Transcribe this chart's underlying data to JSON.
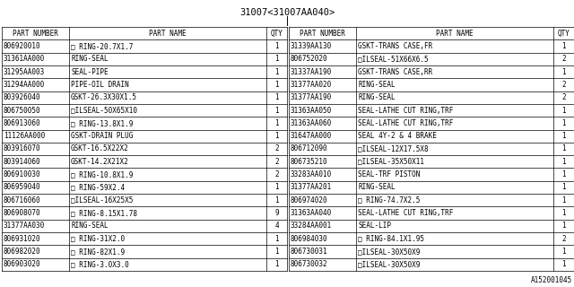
{
  "title": "31007<31007AA040>",
  "watermark": "A152001045",
  "left_rows": [
    [
      "806920010",
      "□ RING-20.7X1.7",
      "1"
    ],
    [
      "31361AA000",
      "RING-SEAL",
      "1"
    ],
    [
      "31295AA003",
      "SEAL-PIPE",
      "1"
    ],
    [
      "31294AA000",
      "PIPE-OIL DRAIN",
      "1"
    ],
    [
      "803926040",
      "GSKT-26.3X30X1.5",
      "1"
    ],
    [
      "806750050",
      "□ILSEAL-50X65X10",
      "1"
    ],
    [
      "806913060",
      "□ RING-13.8X1.9",
      "1"
    ],
    [
      "11126AA000",
      "GSKT-DRAIN PLUG",
      "1"
    ],
    [
      "803916070",
      "GSKT-16.5X22X2",
      "2"
    ],
    [
      "803914060",
      "GSKT-14.2X21X2",
      "2"
    ],
    [
      "806910030",
      "□ RING-10.8X1.9",
      "2"
    ],
    [
      "806959040",
      "□ RING-59X2.4",
      "1"
    ],
    [
      "806716060",
      "□ILSEAL-16X25X5",
      "1"
    ],
    [
      "806908070",
      "□ RING-8.15X1.78",
      "9"
    ],
    [
      "31377AA030",
      "RING-SEAL",
      "4"
    ],
    [
      "806931020",
      "□ RING-31X2.0",
      "1"
    ],
    [
      "806982020",
      "□ RING-82X1.9",
      "1"
    ],
    [
      "806903020",
      "□ RING-3.0X3.0",
      "1"
    ]
  ],
  "right_rows": [
    [
      "31339AA130",
      "GSKT-TRANS CASE,FR",
      "1"
    ],
    [
      "806752020",
      "□ILSEAL-51X66X6.5",
      "2"
    ],
    [
      "31337AA190",
      "GSKT-TRANS CASE,RR",
      "1"
    ],
    [
      "31377AA020",
      "RING-SEAL",
      "2"
    ],
    [
      "31377AA190",
      "RING-SEAL",
      "2"
    ],
    [
      "31363AA050",
      "SEAL-LATHE CUT RING,TRF",
      "1"
    ],
    [
      "31363AA060",
      "SEAL-LATHE CUT RING,TRF",
      "1"
    ],
    [
      "31647AA000",
      "SEAL 4Y-2 & 4 BRAKE",
      "1"
    ],
    [
      "806712090",
      "□ILSEAL-12X17.5X8",
      "1"
    ],
    [
      "806735210",
      "□ILSEAL-35X50X11",
      "1"
    ],
    [
      "33283AA010",
      "SEAL-TRF PISTON",
      "1"
    ],
    [
      "31377AA201",
      "RING-SEAL",
      "1"
    ],
    [
      "806974020",
      "□ RING-74.7X2.5",
      "1"
    ],
    [
      "31363AA040",
      "SEAL-LATHE CUT RING,TRF",
      "1"
    ],
    [
      "33284AA001",
      "SEAL-LIP",
      "1"
    ],
    [
      "806984030",
      "□ RING-84.1X1.95",
      "2"
    ],
    [
      "806730031",
      "□ILSEAL-30X50X9",
      "1"
    ],
    [
      "806730032",
      "□ILSEAL-30X50X9",
      "1"
    ]
  ],
  "bg_color": "#ffffff",
  "text_color": "#000000",
  "line_color": "#000000",
  "font_size": 5.5,
  "title_font_size": 7.5,
  "watermark_font_size": 5.5
}
